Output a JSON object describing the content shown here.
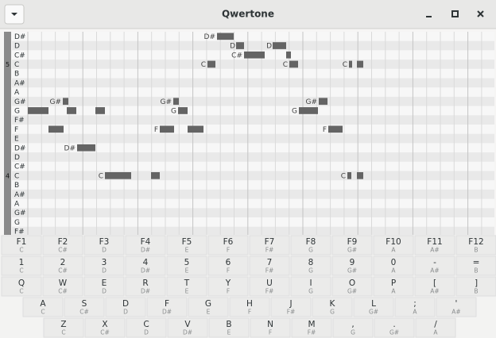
{
  "window": {
    "title": "Qwertone"
  },
  "roll": {
    "octave_labels": [
      "5",
      "4"
    ],
    "row_labels": [
      "D#",
      "D",
      "C#",
      "C",
      "B",
      "A#",
      "A",
      "G#",
      "G",
      "F#",
      "F",
      "E",
      "D#",
      "D",
      "C#",
      "C",
      "B",
      "A#",
      "A",
      "G#",
      "G",
      "F#"
    ],
    "note_labels": [
      "D#",
      "D",
      "D",
      "C#",
      "C",
      "C",
      "C",
      "G#",
      "G#",
      "G#",
      "G",
      "G",
      "F",
      "F",
      "D#",
      "C",
      "C"
    ]
  },
  "keyboard": {
    "rows": [
      [
        {
          "key": "F1",
          "note": "C"
        },
        {
          "key": "F2",
          "note": "C#"
        },
        {
          "key": "F3",
          "note": "D"
        },
        {
          "key": "F4",
          "note": "D#"
        },
        {
          "key": "F5",
          "note": "E"
        },
        {
          "key": "F6",
          "note": "F"
        },
        {
          "key": "F7",
          "note": "F#"
        },
        {
          "key": "F8",
          "note": "G"
        },
        {
          "key": "F9",
          "note": "G#"
        },
        {
          "key": "F10",
          "note": "A"
        },
        {
          "key": "F11",
          "note": "A#"
        },
        {
          "key": "F12",
          "note": "B"
        }
      ],
      [
        {
          "key": "1",
          "note": "C"
        },
        {
          "key": "2",
          "note": "C#"
        },
        {
          "key": "3",
          "note": "D"
        },
        {
          "key": "4",
          "note": "D#"
        },
        {
          "key": "5",
          "note": "E"
        },
        {
          "key": "6",
          "note": "F"
        },
        {
          "key": "7",
          "note": "F#"
        },
        {
          "key": "8",
          "note": "G"
        },
        {
          "key": "9",
          "note": "G#"
        },
        {
          "key": "0",
          "note": "A"
        },
        {
          "key": "-",
          "note": "A#"
        },
        {
          "key": "=",
          "note": "B"
        }
      ],
      [
        {
          "key": "Q",
          "note": "C"
        },
        {
          "key": "W",
          "note": "C#"
        },
        {
          "key": "E",
          "note": "D"
        },
        {
          "key": "R",
          "note": "D#"
        },
        {
          "key": "T",
          "note": "E"
        },
        {
          "key": "Y",
          "note": "F"
        },
        {
          "key": "U",
          "note": "F#"
        },
        {
          "key": "I",
          "note": "G"
        },
        {
          "key": "O",
          "note": "G#"
        },
        {
          "key": "P",
          "note": "A"
        },
        {
          "key": "[",
          "note": "A#"
        },
        {
          "key": "]",
          "note": "B"
        }
      ],
      [
        {
          "key": "A",
          "note": "C"
        },
        {
          "key": "S",
          "note": "C#"
        },
        {
          "key": "D",
          "note": "D"
        },
        {
          "key": "F",
          "note": "D#"
        },
        {
          "key": "G",
          "note": "E"
        },
        {
          "key": "H",
          "note": "F"
        },
        {
          "key": "J",
          "note": "F#"
        },
        {
          "key": "K",
          "note": "G"
        },
        {
          "key": "L",
          "note": "G#"
        },
        {
          "key": ";",
          "note": "A"
        },
        {
          "key": "'",
          "note": "A#"
        }
      ],
      [
        {
          "key": "Z",
          "note": "C"
        },
        {
          "key": "X",
          "note": "C#"
        },
        {
          "key": "C",
          "note": "D"
        },
        {
          "key": "V",
          "note": "D#"
        },
        {
          "key": "B",
          "note": "E"
        },
        {
          "key": "N",
          "note": "F"
        },
        {
          "key": "M",
          "note": "F#"
        },
        {
          "key": ",",
          "note": "G"
        },
        {
          "key": ".",
          "note": "G#"
        },
        {
          "key": "/",
          "note": "A"
        }
      ]
    ]
  }
}
